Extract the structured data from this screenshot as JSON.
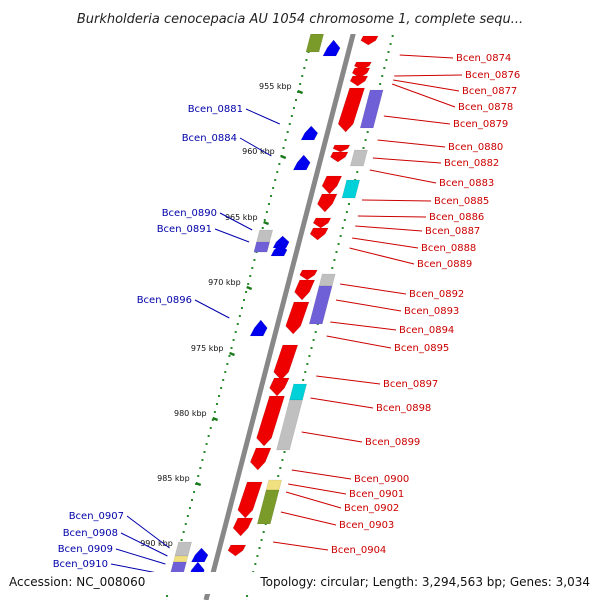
{
  "title": "Burkholderia cenocepacia AU 1054 chromosome 1, complete sequ...",
  "accession": "Accession: NC_008060",
  "topology": "Topology: circular; Length: 3,294,563 bp; Genes: 3,034",
  "colors": {
    "backbone": "#888888",
    "kbp_tick": "#1a7a1a",
    "dots": "#2b8a2b",
    "right_label": "#cc0000",
    "left_label": "#0000aa",
    "red_gene": "#ee0000",
    "blue_gene": "#0000ee",
    "purple_gene": "#7060d8",
    "gray_gene": "#c0c0c0",
    "cyan_gene": "#00d0d8",
    "olive_gene": "#7a9a2a",
    "yellow_gene": "#f0e080"
  },
  "kbp_labels": [
    "955 kbp",
    "960 kbp",
    "965 kbp",
    "970 kbp",
    "975 kbp",
    "980 kbp",
    "985 kbp",
    "990 kbp"
  ],
  "right_genes": [
    "Bcen_0874",
    "Bcen_0876",
    "Bcen_0877",
    "Bcen_0878",
    "Bcen_0879",
    "Bcen_0880",
    "Bcen_0882",
    "Bcen_0883",
    "Bcen_0885",
    "Bcen_0886",
    "Bcen_0887",
    "Bcen_0888",
    "Bcen_0889",
    "Bcen_0892",
    "Bcen_0893",
    "Bcen_0894",
    "Bcen_0895",
    "Bcen_0897",
    "Bcen_0898",
    "Bcen_0899",
    "Bcen_0900",
    "Bcen_0901",
    "Bcen_0902",
    "Bcen_0903",
    "Bcen_0904"
  ],
  "left_genes": [
    "Bcen_0881",
    "Bcen_0884",
    "Bcen_0890",
    "Bcen_0891",
    "Bcen_0896",
    "Bcen_0907",
    "Bcen_0908",
    "Bcen_0909",
    "Bcen_0910"
  ]
}
